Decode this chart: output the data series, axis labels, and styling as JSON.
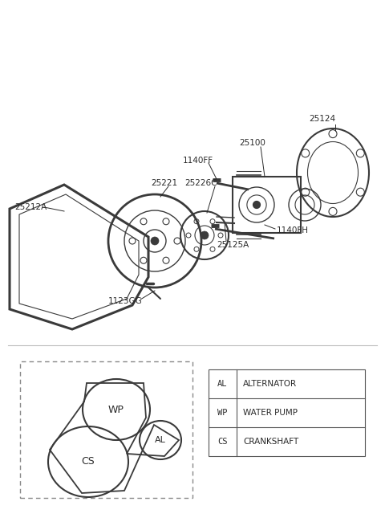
{
  "bg_color": "#ffffff",
  "lc": "#3a3a3a",
  "lc_light": "#888888",
  "fig_w": 4.8,
  "fig_h": 6.55,
  "dpi": 100,
  "legend_entries": [
    {
      "abbr": "AL",
      "full": "ALTERNATOR"
    },
    {
      "abbr": "WP",
      "full": "WATER PUMP"
    },
    {
      "abbr": "CS",
      "full": "CRANKSHAFT"
    }
  ]
}
